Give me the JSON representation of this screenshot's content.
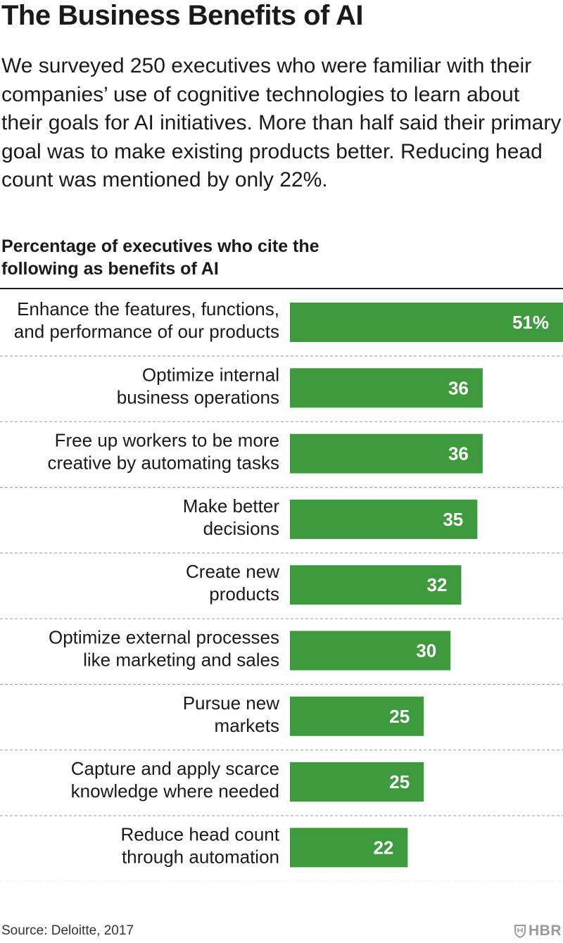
{
  "header": {
    "title": "The Business Benefits of AI",
    "intro": "We surveyed 250 executives who were familiar with their companies’ use of cognitive technologies to learn about their goals for AI initiatives. More than half said their primary goal was to make existing products better. Reducing head count was mentioned by only 22%."
  },
  "chart_data": {
    "type": "bar",
    "orientation": "horizontal",
    "title": "Percentage of executives who cite the following as benefits of AI",
    "categories": [
      [
        "Enhance the features, functions,",
        "and performance of our products"
      ],
      [
        "Optimize internal",
        "business operations"
      ],
      [
        "Free up workers to be more",
        "creative by automating tasks"
      ],
      [
        "Make better",
        "decisions"
      ],
      [
        "Create new",
        "products"
      ],
      [
        "Optimize external processes",
        "like marketing and sales"
      ],
      [
        "Pursue new",
        "markets"
      ],
      [
        "Capture and apply scarce",
        "knowledge where needed"
      ],
      [
        "Reduce head count",
        "through automation"
      ]
    ],
    "values": [
      51,
      36,
      36,
      35,
      32,
      30,
      25,
      25,
      22
    ],
    "value_labels": [
      "51%",
      "36",
      "36",
      "35",
      "32",
      "30",
      "25",
      "25",
      "22"
    ],
    "xlim": [
      0,
      51
    ],
    "bar_color": "#3d9a3d",
    "grid": false
  },
  "footer": {
    "source": "Source: Deloitte, 2017",
    "brand": "HBR",
    "brand_icon": "hbr-shield-icon"
  }
}
